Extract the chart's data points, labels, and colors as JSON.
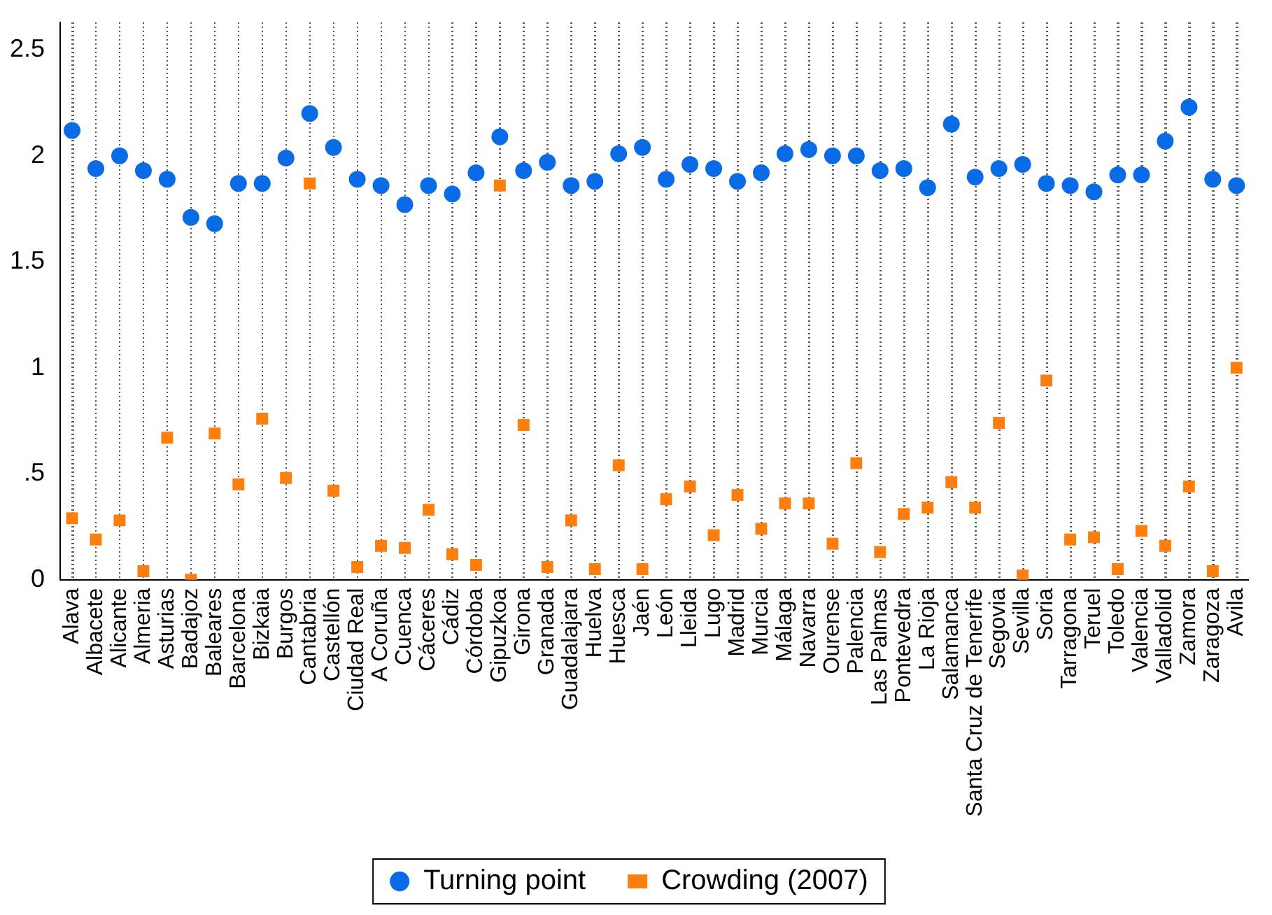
{
  "chart_data": {
    "type": "scatter",
    "categories": [
      "Alava",
      "Albacete",
      "Alicante",
      "Almeria",
      "Asturias",
      "Badajoz",
      "Baleares",
      "Barcelona",
      "Bizkaia",
      "Burgos",
      "Cantabria",
      "Castellón",
      "Ciudad Real",
      "A Coruña",
      "Cuenca",
      "Cáceres",
      "Cádiz",
      "Córdoba",
      "Gipuzkoa",
      "Girona",
      "Granada",
      "Guadalajara",
      "Huelva",
      "Huesca",
      "Jaén",
      "León",
      "Lleida",
      "Lugo",
      "Madrid",
      "Murcia",
      "Málaga",
      "Navarra",
      "Ourense",
      "Palencia",
      "Las Palmas",
      "Pontevedra",
      "La Rioja",
      "Salamanca",
      "Santa Cruz de Tenerife",
      "Segovia",
      "Sevilla",
      "Soria",
      "Tarragona",
      "Teruel",
      "Toledo",
      "Valencia",
      "Valladolid",
      "Zamora",
      "Zaragoza",
      "Avila"
    ],
    "series": [
      {
        "name": "Turning point",
        "color": "#0a6be6",
        "marker": "circle",
        "values": [
          2.12,
          1.94,
          2.0,
          1.93,
          1.89,
          1.71,
          1.68,
          1.87,
          1.87,
          1.99,
          2.2,
          2.04,
          1.89,
          1.86,
          1.77,
          1.86,
          1.82,
          1.92,
          2.09,
          1.93,
          1.97,
          1.86,
          1.88,
          2.01,
          2.04,
          1.89,
          1.96,
          1.94,
          1.88,
          1.92,
          2.01,
          2.03,
          2.0,
          2.0,
          1.93,
          1.94,
          1.85,
          2.15,
          1.9,
          1.94,
          1.96,
          1.87,
          1.86,
          1.83,
          1.91,
          1.91,
          2.07,
          2.23,
          1.89,
          1.86
        ]
      },
      {
        "name": "Crowding (2007)",
        "color": "#ff7f0e",
        "marker": "square",
        "values": [
          0.29,
          0.19,
          0.28,
          0.04,
          0.67,
          0.0,
          0.69,
          0.45,
          0.76,
          0.48,
          1.87,
          0.42,
          0.06,
          0.16,
          0.15,
          0.33,
          0.12,
          0.07,
          1.86,
          0.73,
          0.06,
          0.28,
          0.05,
          0.54,
          0.05,
          0.38,
          0.44,
          0.21,
          0.4,
          0.24,
          0.36,
          0.36,
          0.17,
          0.55,
          0.13,
          0.31,
          0.34,
          0.46,
          0.34,
          0.74,
          0.02,
          0.94,
          0.19,
          0.2,
          0.05,
          0.23,
          0.16,
          0.44,
          0.04,
          1.0
        ]
      }
    ],
    "ylim": [
      0,
      2.63
    ],
    "yticks": [
      0,
      {
        "value": 0.5,
        "label": ".5"
      },
      1,
      1.5,
      2,
      2.5
    ],
    "grid": "x",
    "legend": "bottom"
  }
}
